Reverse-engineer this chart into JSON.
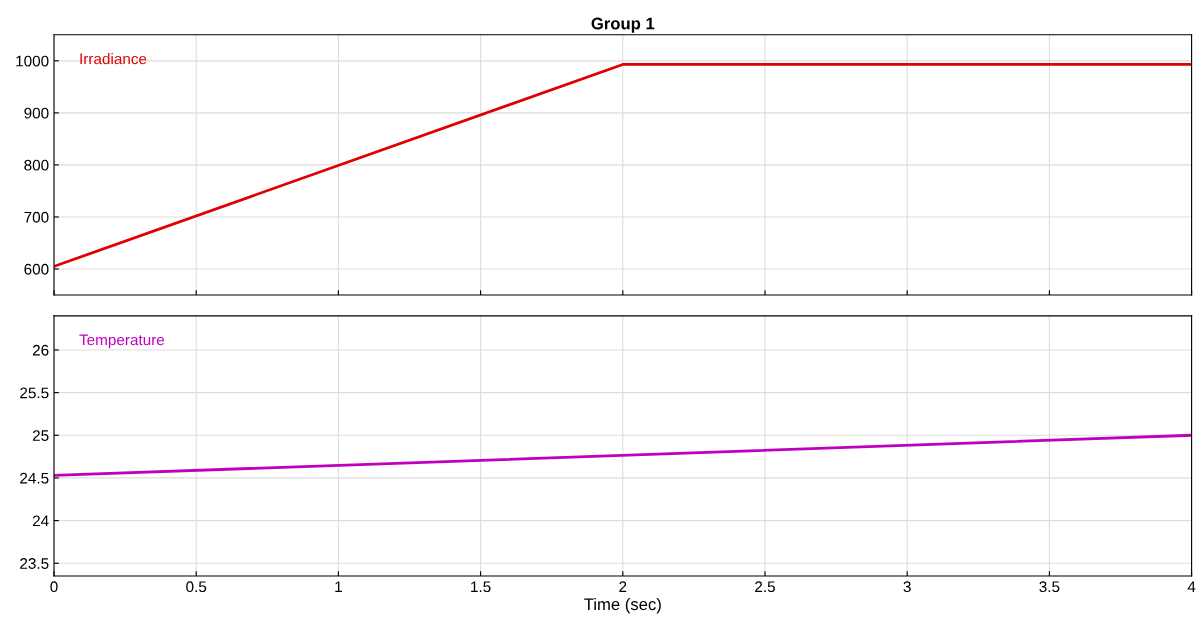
{
  "chart_data": [
    {
      "type": "line",
      "title": "Group 1",
      "x": [
        0,
        2,
        4
      ],
      "series": [
        {
          "name": "Irradiance",
          "color": "#e00000",
          "values": [
            605,
            993,
            993
          ]
        }
      ],
      "xlim": [
        0,
        4
      ],
      "xticks": [
        0,
        0.5,
        1,
        1.5,
        2,
        2.5,
        3,
        3.5,
        4
      ],
      "ylim": [
        550,
        1050
      ],
      "yticks": [
        600,
        700,
        800,
        900,
        1000
      ],
      "grid": true,
      "tick_labels": "y"
    },
    {
      "type": "line",
      "x": [
        0,
        4
      ],
      "xlabel": "Time (sec)",
      "series": [
        {
          "name": "Temperature",
          "color": "#c000c0",
          "values": [
            24.53,
            25.0
          ]
        }
      ],
      "xlim": [
        0,
        4
      ],
      "xticks": [
        0,
        0.5,
        1,
        1.5,
        2,
        2.5,
        3,
        3.5,
        4
      ],
      "ylim": [
        23.35,
        26.4
      ],
      "yticks": [
        23.5,
        24,
        24.5,
        25,
        25.5,
        26
      ],
      "grid": true
    }
  ]
}
